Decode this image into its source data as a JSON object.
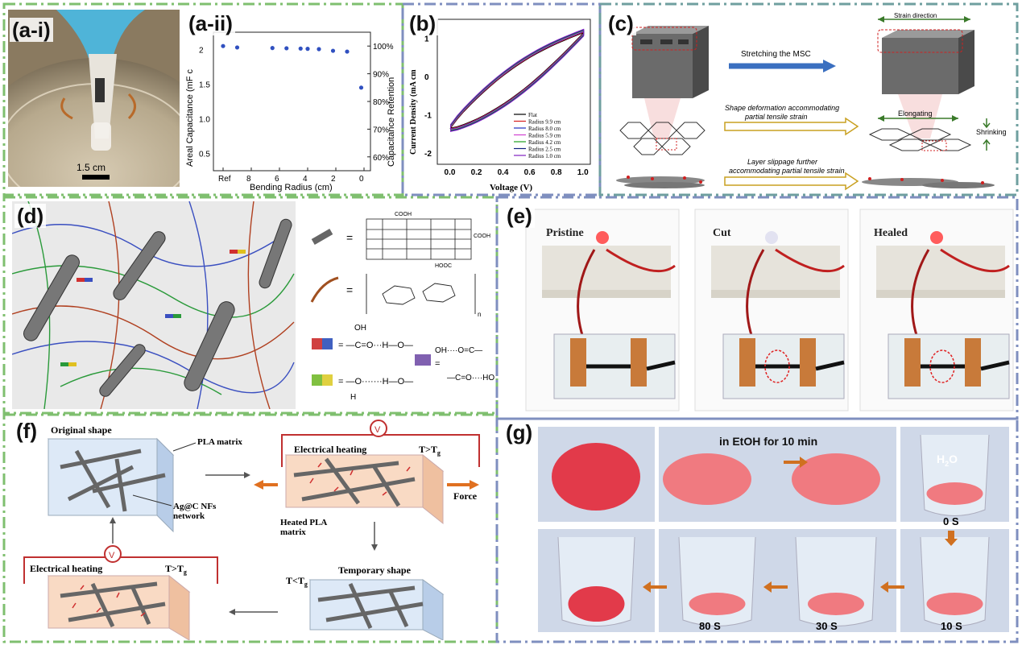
{
  "panels": {
    "a_i": {
      "label": "(a-i)",
      "scale": "1.5 cm"
    },
    "a_ii": {
      "label": "(a-ii)"
    },
    "b": {
      "label": "(b)"
    },
    "c": {
      "label": "(c)",
      "strain_dir": "Strain direction",
      "stretch": "Stretching the MSC",
      "shape_deform_1": "Shape deformation accommodating",
      "shape_deform_2": "partial tensile strain",
      "elongating": "Elongating",
      "shrinking": "Shrinking",
      "layer_1": "Layer slippage further",
      "layer_2": "accommodating partial tensile strain"
    },
    "d": {
      "label": "(d)",
      "cooh": "COOH",
      "hooc": "HOOC",
      "n": "n"
    },
    "e": {
      "label": "(e)",
      "pristine": "Pristine",
      "cut": "Cut",
      "healed": "Healed"
    },
    "f": {
      "label": "(f)",
      "original": "Original shape",
      "pla": "PLA matrix",
      "agc_1": "Ag@C NFs",
      "agc_2": "network",
      "eheat": "Electrical heating",
      "tgt": "T>T",
      "tgt_sub": "g",
      "force": "Force",
      "heated_1": "Heated PLA",
      "heated_2": "matrix",
      "temp": "Temporary shape",
      "tlt": "T<T",
      "tlt_sub": "g",
      "v": "V"
    },
    "g": {
      "label": "(g)",
      "etoh": "in EtOH for 10 min",
      "h2o": "H",
      "h2o_sub": "2",
      "h2o_end": "O",
      "t0": "0 S",
      "t10": "10 S",
      "t30": "30 S",
      "t80": "80 S"
    }
  },
  "chart_data": [
    {
      "type": "scatter",
      "title": "",
      "xlabel": "Bending Radius (cm)",
      "ylabel": "Areal Capacitance (mF c",
      "ylabel_right": "Capacitance Retention",
      "x_ticks": [
        "Ref",
        "8",
        "6",
        "4",
        "2",
        "0"
      ],
      "y_ticks": [
        "0.5",
        "1.0",
        "1.5",
        "2"
      ],
      "y2_ticks": [
        "60%",
        "70%",
        "80%",
        "90%",
        "100%"
      ],
      "y2lim": [
        55,
        105
      ],
      "points": [
        {
          "x": "Ref",
          "y2": 100
        },
        {
          "x": 9,
          "y2": 99.5
        },
        {
          "x": 6.5,
          "y2": 99.3
        },
        {
          "x": 5.5,
          "y2": 99.2
        },
        {
          "x": 4.5,
          "y2": 99.1
        },
        {
          "x": 4,
          "y2": 99.0
        },
        {
          "x": 3.2,
          "y2": 98.9
        },
        {
          "x": 2.2,
          "y2": 98.3
        },
        {
          "x": 1.2,
          "y2": 98.0
        },
        {
          "x": 0.2,
          "y2": 85.0
        }
      ]
    },
    {
      "type": "line",
      "title": "",
      "xlabel": "Voltage (V)",
      "ylabel": "Current Density (mA cm",
      "xlim": [
        -0.1,
        1.05
      ],
      "ylim": [
        -2.3,
        1.5
      ],
      "x_ticks": [
        "0.0",
        "0.2",
        "0.4",
        "0.6",
        "0.8",
        "1.0"
      ],
      "y_ticks": [
        "-2",
        "-1",
        "0",
        "1"
      ],
      "series": [
        {
          "name": "Flat",
          "color": "#000000"
        },
        {
          "name": "Radius 9.9 cm",
          "color": "#d62020"
        },
        {
          "name": "Radius 8.0 cm",
          "color": "#2030c0"
        },
        {
          "name": "Radius 5.9 cm",
          "color": "#d040d0"
        },
        {
          "name": "Radius 4.2 cm",
          "color": "#20a020"
        },
        {
          "name": "Radius 2.5 cm",
          "color": "#102080"
        },
        {
          "name": "Radius 1.0 cm",
          "color": "#8020c0"
        }
      ]
    }
  ]
}
